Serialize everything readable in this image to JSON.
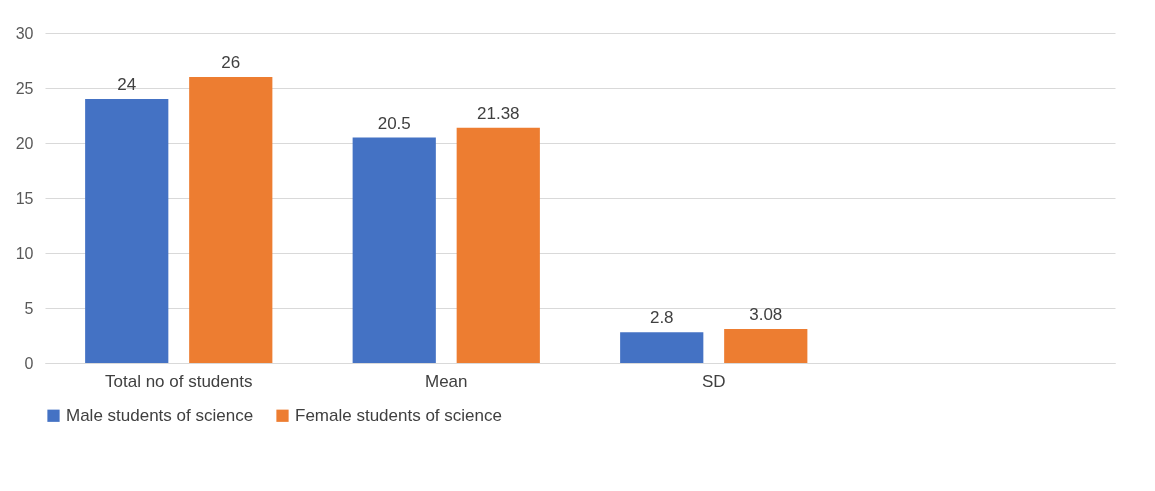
{
  "chart_data": {
    "type": "bar",
    "categories": [
      "Total no of students",
      "Mean",
      "SD",
      null
    ],
    "series": [
      {
        "name": "Male students of science",
        "color": "#4472c4",
        "values": [
          24,
          20.5,
          2.8,
          null
        ]
      },
      {
        "name": "Female students of science",
        "color": "#ed7d31",
        "values": [
          26,
          21.38,
          3.08,
          null
        ]
      }
    ],
    "ylim": [
      0,
      30
    ],
    "yticks": [
      0,
      5,
      10,
      15,
      20,
      25,
      30
    ],
    "grid": "y",
    "legend": "bottom",
    "data_labels": true
  }
}
